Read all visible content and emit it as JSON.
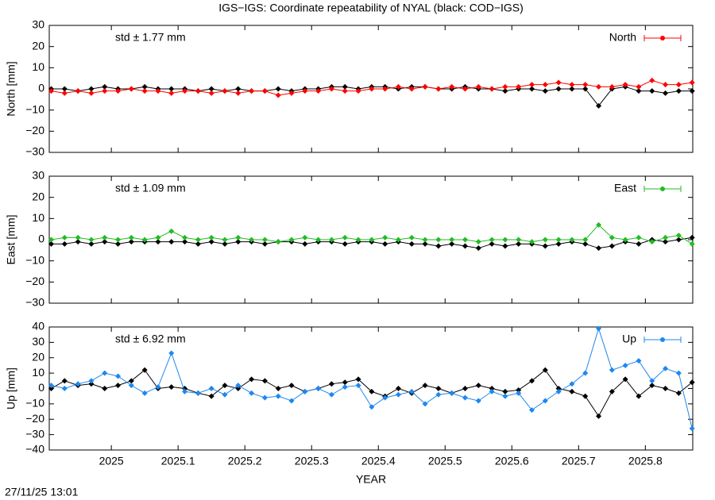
{
  "title": "IGS−IGS: Coordinate repeatability of NYAL (black: COD−IGS)",
  "timestamp": "27/11/25 13:01",
  "chart_data": [
    {
      "type": "line",
      "ylabel": "North [mm]",
      "annotation": "std ± 1.77 mm",
      "xlim": [
        2024.907,
        2025.871
      ],
      "xticks": [
        2025,
        2025.1,
        2025.2,
        2025.3,
        2025.4,
        2025.5,
        2025.6,
        2025.7,
        2025.8
      ],
      "ylim": [
        -30,
        30
      ],
      "yticks": [
        {
          "value": -30,
          "label": "−30"
        },
        {
          "value": -20,
          "label": "−20"
        },
        {
          "value": -10,
          "label": "−10"
        },
        0,
        10,
        20,
        30
      ],
      "x": [
        2024.91,
        2024.93,
        2024.95,
        2024.97,
        2024.99,
        2025.01,
        2025.03,
        2025.05,
        2025.07,
        2025.09,
        2025.11,
        2025.13,
        2025.15,
        2025.17,
        2025.19,
        2025.21,
        2025.23,
        2025.25,
        2025.27,
        2025.29,
        2025.31,
        2025.33,
        2025.35,
        2025.37,
        2025.39,
        2025.41,
        2025.43,
        2025.45,
        2025.47,
        2025.49,
        2025.51,
        2025.53,
        2025.55,
        2025.57,
        2025.59,
        2025.61,
        2025.63,
        2025.65,
        2025.67,
        2025.69,
        2025.71,
        2025.73,
        2025.75,
        2025.77,
        2025.79,
        2025.81,
        2025.83,
        2025.85,
        2025.87
      ],
      "series": [
        {
          "color": "#000000",
          "values": [
            0,
            0,
            -1,
            0,
            1,
            0,
            0,
            1,
            0,
            0,
            0,
            -1,
            0,
            -1,
            0,
            -1,
            -1,
            0,
            -1,
            0,
            0,
            1,
            1,
            0,
            1,
            1,
            0,
            1,
            1,
            0,
            0,
            1,
            0,
            0,
            -1,
            0,
            0,
            -1,
            0,
            0,
            0,
            -8,
            0,
            1,
            -1,
            -1,
            -2,
            -1,
            -1
          ]
        },
        {
          "name": "North",
          "color": "#ff0000",
          "values": [
            -1,
            -2,
            -1,
            -2,
            -1,
            -1,
            0,
            -1,
            -1,
            -2,
            -1,
            -1,
            -2,
            -1,
            -2,
            -1,
            -1,
            -3,
            -2,
            -1,
            -1,
            0,
            -1,
            -1,
            0,
            0,
            1,
            0,
            1,
            0,
            1,
            0,
            1,
            0,
            1,
            1,
            2,
            2,
            3,
            2,
            2,
            1,
            1,
            2,
            1,
            4,
            2,
            2,
            3
          ]
        }
      ]
    },
    {
      "type": "line",
      "ylabel": "East [mm]",
      "annotation": "std ± 1.09 mm",
      "xlim": [
        2024.907,
        2025.871
      ],
      "xticks": [
        2025,
        2025.1,
        2025.2,
        2025.3,
        2025.4,
        2025.5,
        2025.6,
        2025.7,
        2025.8
      ],
      "ylim": [
        -30,
        30
      ],
      "yticks": [
        {
          "value": -30,
          "label": "−30"
        },
        {
          "value": -20,
          "label": "−20"
        },
        {
          "value": -10,
          "label": "−10"
        },
        0,
        10,
        20,
        30
      ],
      "x": [
        2024.91,
        2024.93,
        2024.95,
        2024.97,
        2024.99,
        2025.01,
        2025.03,
        2025.05,
        2025.07,
        2025.09,
        2025.11,
        2025.13,
        2025.15,
        2025.17,
        2025.19,
        2025.21,
        2025.23,
        2025.25,
        2025.27,
        2025.29,
        2025.31,
        2025.33,
        2025.35,
        2025.37,
        2025.39,
        2025.41,
        2025.43,
        2025.45,
        2025.47,
        2025.49,
        2025.51,
        2025.53,
        2025.55,
        2025.57,
        2025.59,
        2025.61,
        2025.63,
        2025.65,
        2025.67,
        2025.69,
        2025.71,
        2025.73,
        2025.75,
        2025.77,
        2025.79,
        2025.81,
        2025.83,
        2025.85,
        2025.87
      ],
      "series": [
        {
          "color": "#000000",
          "values": [
            -2,
            -2,
            -1,
            -2,
            -1,
            -2,
            -1,
            -1,
            -1,
            -1,
            -1,
            -2,
            -1,
            -2,
            -1,
            -1,
            -2,
            -1,
            -1,
            -2,
            -1,
            -1,
            -2,
            -1,
            -1,
            -2,
            -1,
            -2,
            -2,
            -3,
            -2,
            -3,
            -4,
            -2,
            -3,
            -2,
            -2,
            -3,
            -2,
            -1,
            -2,
            -4,
            -3,
            -1,
            -2,
            0,
            -1,
            0,
            1
          ]
        },
        {
          "name": "East",
          "color": "#22bb22",
          "values": [
            0,
            1,
            1,
            0,
            1,
            0,
            1,
            0,
            1,
            4,
            1,
            0,
            1,
            0,
            1,
            0,
            0,
            -1,
            0,
            1,
            0,
            0,
            1,
            0,
            0,
            1,
            0,
            1,
            0,
            0,
            0,
            0,
            -1,
            0,
            0,
            0,
            -1,
            0,
            0,
            0,
            0,
            7,
            1,
            0,
            1,
            -1,
            1,
            2,
            -2
          ]
        }
      ]
    },
    {
      "type": "line",
      "ylabel": "Up [mm]",
      "annotation": "std ± 6.92 mm",
      "xlabel": "YEAR",
      "xlim": [
        2024.907,
        2025.871
      ],
      "xticks": [
        2025,
        2025.1,
        2025.2,
        2025.3,
        2025.4,
        2025.5,
        2025.6,
        2025.7,
        2025.8
      ],
      "ylim": [
        -40,
        40
      ],
      "yticks": [
        {
          "value": -40,
          "label": "−40"
        },
        {
          "value": -30,
          "label": "−30"
        },
        {
          "value": -20,
          "label": "−20"
        },
        {
          "value": -10,
          "label": "−10"
        },
        0,
        10,
        20,
        30,
        40
      ],
      "x": [
        2024.91,
        2024.93,
        2024.95,
        2024.97,
        2024.99,
        2025.01,
        2025.03,
        2025.05,
        2025.07,
        2025.09,
        2025.11,
        2025.13,
        2025.15,
        2025.17,
        2025.19,
        2025.21,
        2025.23,
        2025.25,
        2025.27,
        2025.29,
        2025.31,
        2025.33,
        2025.35,
        2025.37,
        2025.39,
        2025.41,
        2025.43,
        2025.45,
        2025.47,
        2025.49,
        2025.51,
        2025.53,
        2025.55,
        2025.57,
        2025.59,
        2025.61,
        2025.63,
        2025.65,
        2025.67,
        2025.69,
        2025.71,
        2025.73,
        2025.75,
        2025.77,
        2025.79,
        2025.81,
        2025.83,
        2025.85,
        2025.87
      ],
      "series": [
        {
          "color": "#000000",
          "values": [
            0,
            5,
            2,
            3,
            0,
            2,
            5,
            12,
            0,
            1,
            0,
            -3,
            -5,
            2,
            0,
            6,
            5,
            0,
            2,
            -2,
            0,
            3,
            4,
            6,
            -2,
            -5,
            0,
            -3,
            2,
            0,
            -3,
            0,
            2,
            0,
            -2,
            -1,
            5,
            12,
            0,
            -2,
            -5,
            -18,
            -2,
            6,
            -5,
            2,
            0,
            -3,
            4
          ]
        },
        {
          "name": "Up",
          "color": "#1e88ee",
          "values": [
            2,
            0,
            3,
            5,
            10,
            8,
            2,
            -3,
            1,
            23,
            -2,
            -3,
            0,
            -4,
            2,
            -3,
            -6,
            -5,
            -8,
            -2,
            0,
            -4,
            1,
            2,
            -12,
            -6,
            -4,
            -2,
            -10,
            -4,
            -3,
            -6,
            -8,
            -2,
            -5,
            -3,
            -14,
            -8,
            -2,
            3,
            10,
            39,
            12,
            15,
            18,
            5,
            13,
            10,
            -26
          ]
        }
      ]
    }
  ]
}
